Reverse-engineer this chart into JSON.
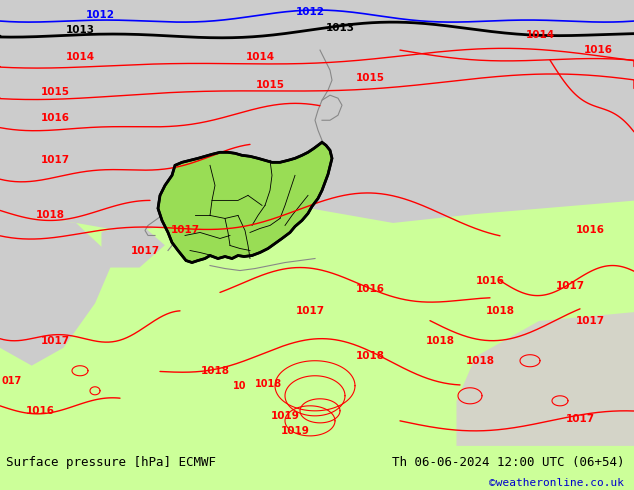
{
  "title_left": "Surface pressure [hPa] ECMWF",
  "title_right": "Th 06-06-2024 12:00 UTC (06+54)",
  "credit": "©weatheronline.co.uk",
  "credit_color": "#0000cc",
  "bg_green_light": "#ccff99",
  "bg_green_germany": "#99dd55",
  "bg_gray_sea": "#cccccc",
  "footer_bg": "#ccff99",
  "figsize": [
    6.34,
    4.9
  ],
  "dpi": 100
}
